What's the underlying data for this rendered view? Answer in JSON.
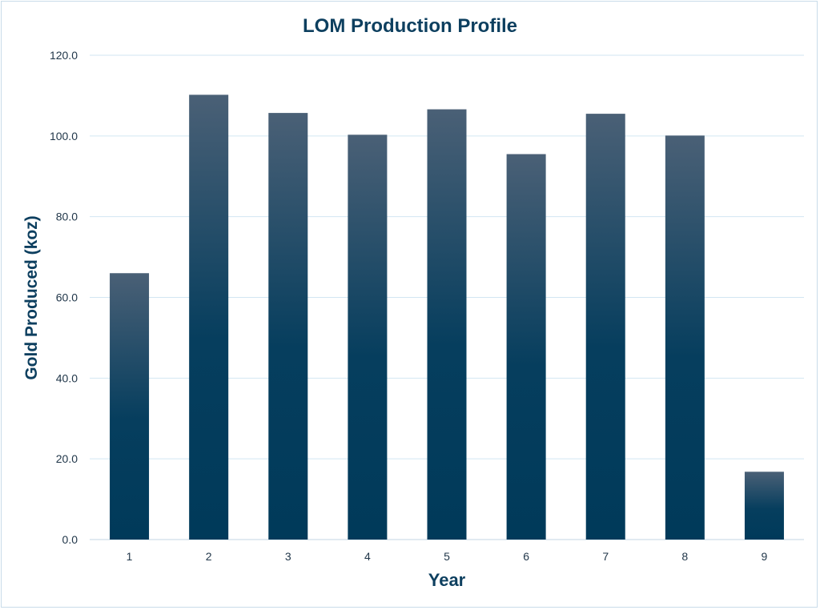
{
  "chart_data": {
    "type": "bar",
    "title": "LOM Production Profile",
    "xlabel": "Year",
    "ylabel": "Gold Produced (koz)",
    "categories": [
      "1",
      "2",
      "3",
      "4",
      "5",
      "6",
      "7",
      "8",
      "9"
    ],
    "values": [
      66.0,
      110.2,
      105.7,
      100.3,
      106.6,
      95.5,
      105.5,
      100.1,
      16.8
    ],
    "ylim": [
      0,
      120
    ],
    "yticks": [
      "0.0",
      "20.0",
      "40.0",
      "60.0",
      "80.0",
      "100.0",
      "120.0"
    ],
    "grid": true,
    "legend": "none"
  },
  "colors": {
    "bar_top": "#4a6076",
    "bar_bottom": "#003a5a",
    "title": "#0d3f5f",
    "axis_label": "#0d3f5f",
    "tick_label": "#1f3548",
    "gridline": "#d2e6f2",
    "frame": "#c9dcea"
  }
}
